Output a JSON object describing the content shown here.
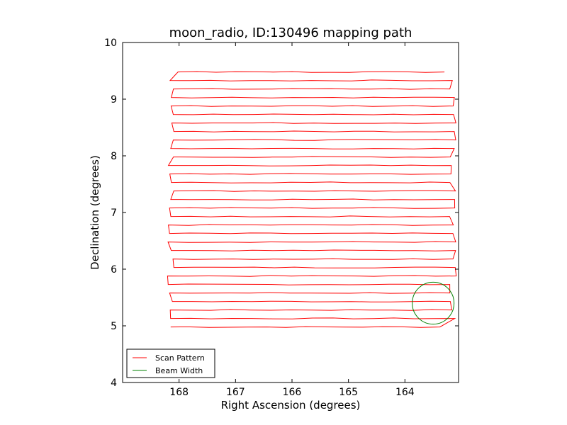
{
  "chart_data": {
    "type": "line",
    "title": "moon_radio, ID:130496 mapping path",
    "xlabel": "Right Ascension (degrees)",
    "ylabel": "Declination (degrees)",
    "xlim": [
      169.0,
      163.05
    ],
    "ylim": [
      4,
      10
    ],
    "xticks": [
      168,
      167,
      166,
      165,
      164
    ],
    "yticks": [
      4,
      5,
      6,
      7,
      8,
      9,
      10
    ],
    "x_inverted": true,
    "grid": false,
    "legend_position": "lower-left",
    "colors": {
      "scan": "#ff0000",
      "beam": "#008000"
    },
    "series": [
      {
        "name": "Scan Pattern",
        "kind": "raster",
        "dec_start": 4.98,
        "dec_step": 0.15,
        "rows": 31,
        "ra_left": 168.15,
        "ra_right": 163.15,
        "ra_last_left": 168.02,
        "ra_last_right": 163.3,
        "ra_first_right": 163.38
      },
      {
        "name": "Beam Width",
        "kind": "circle",
        "center_ra": 163.5,
        "center_dec": 5.4,
        "radius": 0.37
      }
    ]
  }
}
